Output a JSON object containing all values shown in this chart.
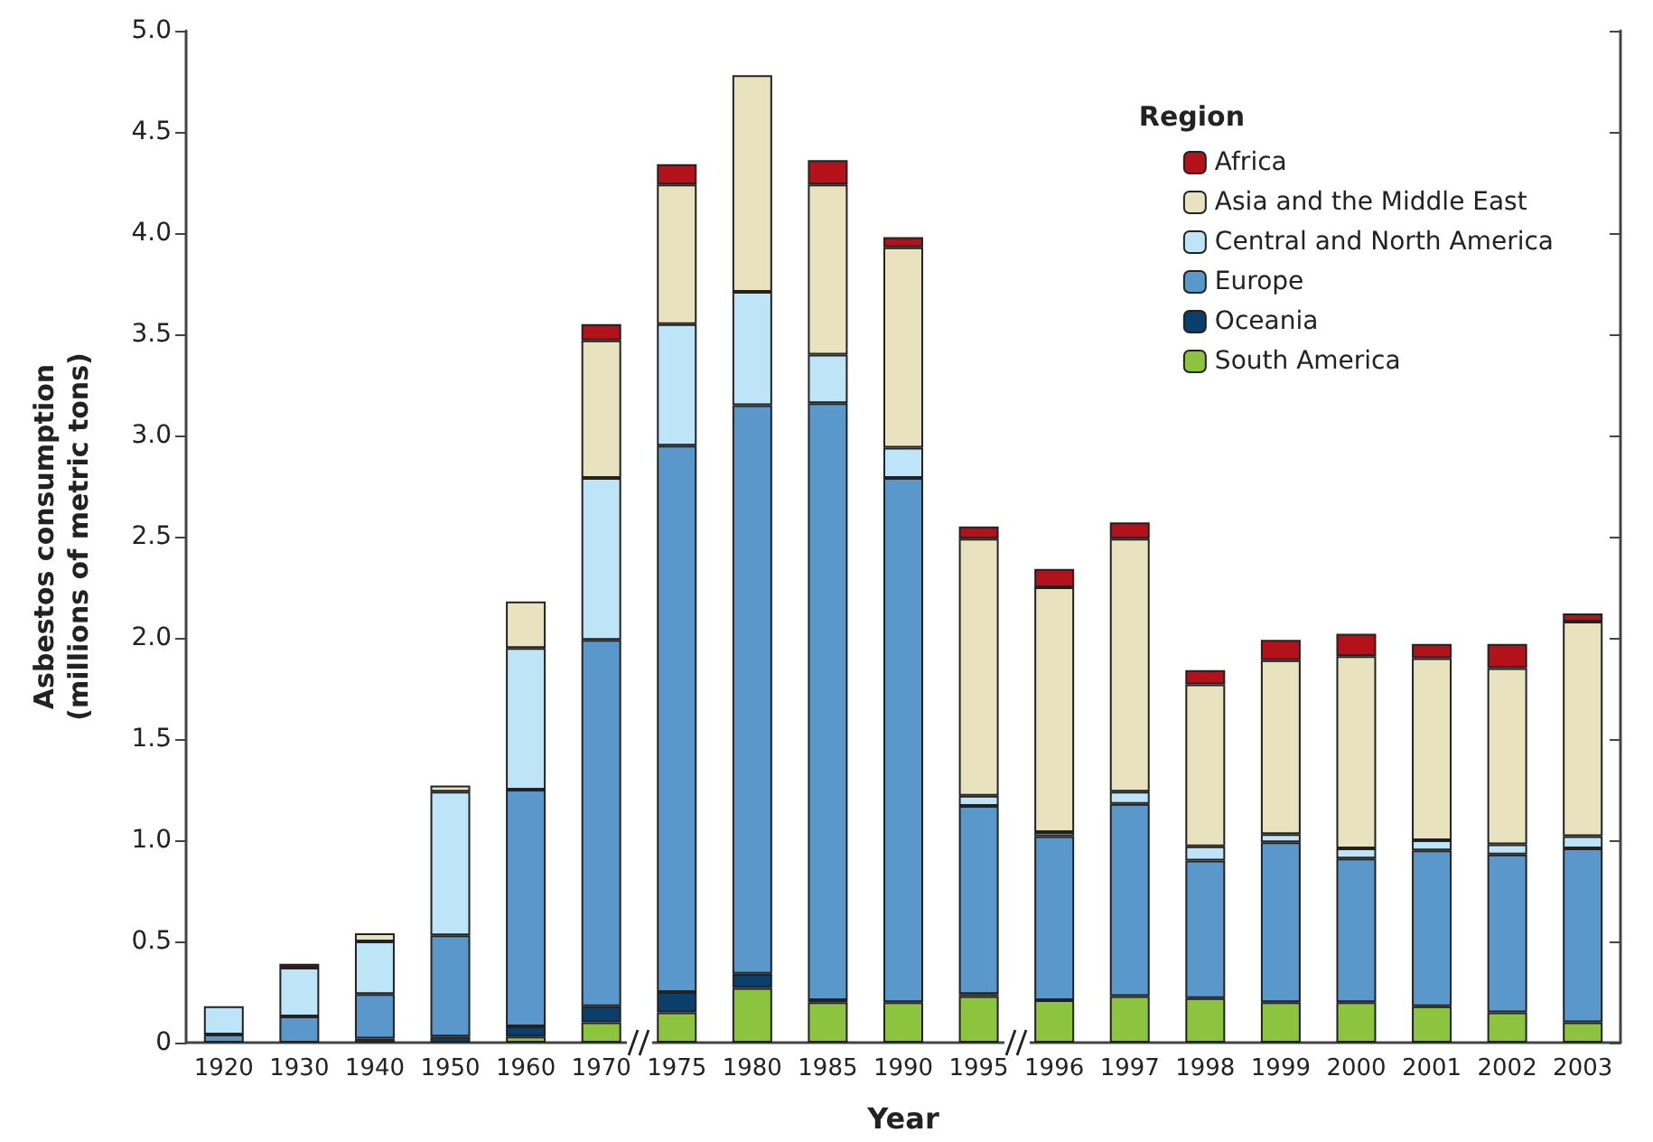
{
  "chart_data": {
    "type": "bar",
    "stacked": true,
    "xlabel": "Year",
    "ylabel": "Asbestos consumption\n(millions of metric tons)",
    "legend_title": "Region",
    "legend": "top right",
    "grid": false,
    "categories": [
      "1920",
      "1930",
      "1940",
      "1950",
      "1960",
      "1970",
      "1975",
      "1980",
      "1985",
      "1990",
      "1995",
      "1996",
      "1997",
      "1998",
      "1999",
      "2000",
      "2001",
      "2002",
      "2003"
    ],
    "ylim": [
      0,
      5
    ],
    "yticks": [
      {
        "value": 0,
        "label": "0"
      },
      0.5,
      {
        "value": 1,
        "label": "1.0"
      },
      1.5,
      {
        "value": 2,
        "label": "2.0"
      },
      2.5,
      {
        "value": 3,
        "label": "3.0"
      },
      3.5,
      {
        "value": 4,
        "label": "4.0"
      },
      4.5,
      {
        "value": 5,
        "label": "5.0"
      }
    ],
    "series": [
      {
        "name": "South America",
        "color": "#8cc43f",
        "values": [
          0,
          0,
          0,
          null,
          0.03,
          0.1,
          0.15,
          0.27,
          0.2,
          0.2,
          0.23,
          0.21,
          0.23,
          0.22,
          0.2,
          0.2,
          0.18,
          0.15,
          0.1
        ]
      },
      {
        "name": "Oceania",
        "color": "#0b3f6b",
        "values": [
          0,
          0,
          0.02,
          0.03,
          0.05,
          0.08,
          0.1,
          0.07,
          0.01,
          0,
          0.01,
          0,
          0,
          0,
          0,
          0,
          0,
          0,
          0
        ]
      },
      {
        "name": "Europe",
        "color": "#5a97cb",
        "values": [
          0.04,
          0.13,
          0.22,
          0.5,
          1.17,
          1.81,
          2.7,
          2.81,
          2.95,
          2.59,
          0.93,
          0.81,
          0.95,
          0.68,
          0.79,
          0.71,
          0.77,
          0.78,
          0.86
        ]
      },
      {
        "name": "Central and North America",
        "color": "#bde5f7",
        "values": [
          0.14,
          0.24,
          0.26,
          0.71,
          0.7,
          0.8,
          0.6,
          0.56,
          0.24,
          0.15,
          0.05,
          0.02,
          0.06,
          0.07,
          0.04,
          0.05,
          0.05,
          0.05,
          0.06
        ]
      },
      {
        "name": "Asia and the Middle East",
        "color": "#e8e2bf",
        "values": [
          0,
          0,
          0.04,
          0.03,
          0.23,
          0.68,
          0.69,
          1.07,
          0.84,
          0.99,
          1.27,
          1.21,
          1.25,
          0.8,
          0.86,
          0.95,
          0.9,
          0.87,
          1.06
        ]
      },
      {
        "name": "Africa",
        "color": "#b3121b",
        "values": [
          0,
          0.02,
          0,
          0,
          0,
          0.08,
          0.1,
          0,
          0.12,
          0.05,
          0.06,
          0.09,
          0.08,
          0.07,
          0.1,
          0.11,
          0.07,
          0.12,
          0.04
        ]
      }
    ]
  }
}
